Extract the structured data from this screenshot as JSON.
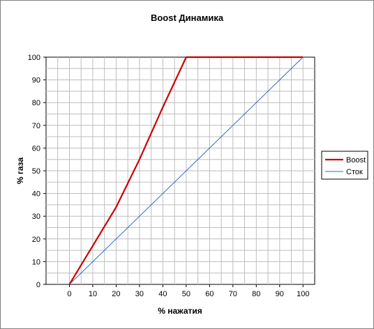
{
  "chart_data": {
    "type": "line",
    "title": "Boost Динамика",
    "xlabel": "% нажатия",
    "ylabel": "% газа",
    "xlim": [
      -10,
      105
    ],
    "ylim": [
      0,
      100
    ],
    "x_ticks": [
      0,
      10,
      20,
      30,
      40,
      50,
      60,
      70,
      80,
      90,
      100
    ],
    "y_ticks": [
      0,
      10,
      20,
      30,
      40,
      50,
      60,
      70,
      80,
      90,
      100
    ],
    "grid": true,
    "legend": "right",
    "series": [
      {
        "name": "Boost",
        "color": "#cc0000",
        "points": [
          [
            0,
            0
          ],
          [
            20,
            34
          ],
          [
            30,
            55
          ],
          [
            40,
            78
          ],
          [
            50,
            100
          ],
          [
            100,
            100
          ]
        ]
      },
      {
        "name": "Сток",
        "color": "#3366cc",
        "points": [
          [
            0,
            0
          ],
          [
            100,
            100
          ]
        ]
      }
    ]
  }
}
